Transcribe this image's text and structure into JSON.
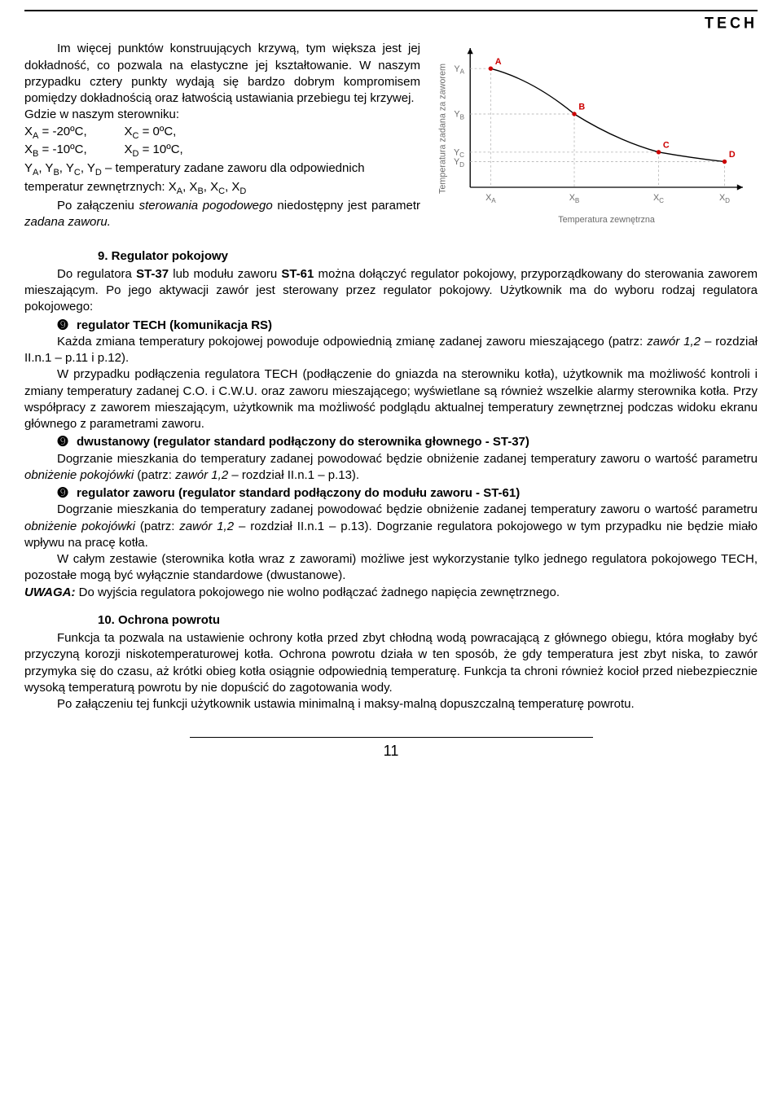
{
  "header": {
    "logo": "TECH"
  },
  "intro": {
    "p1": "Im więcej punktów konstruujących krzywą, tym większa jest jej dokładność, co pozwala na elastyczne jej kształtowanie. W naszym przypadku cztery punkty wydają się bardzo dobrym kompromisem pomiędzy dokładnością oraz łatwością ustawiania przebiegu tej krzywej.",
    "p2": "Gdzie w naszym sterowniku:",
    "vars_l1_a": "X",
    "vars_l1_a_sub": "A",
    "vars_l1_a_val": " = -20ºC,",
    "vars_l1_b": "X",
    "vars_l1_b_sub": "C",
    "vars_l1_b_val": " = 0ºC,",
    "vars_l2_a": "X",
    "vars_l2_a_sub": "B",
    "vars_l2_a_val": " = -10ºC,",
    "vars_l2_b": "X",
    "vars_l2_b_sub": "D",
    "vars_l2_b_val": " = 10ºC,",
    "vars_l3_pre": "Y",
    "vars_l3": ", Y",
    "vars_l3_subs": [
      "A",
      "B",
      "C",
      "D"
    ],
    "vars_l3_post": " – temperatury zadane zaworu dla odpowiednich temperatur zewnętrznych: X",
    "vars_l4_subs": [
      "A",
      "B",
      "C",
      "D"
    ],
    "p3_a": "Po załączeniu ",
    "p3_b": "sterowania pogodowego",
    "p3_c": " niedostępny jest parametr ",
    "p3_d": "zadana zaworu."
  },
  "chart": {
    "type": "line",
    "y_label": "Temperatura zadana za zaworem",
    "x_label": "Temperatura zewnętrzna",
    "y_ticks": [
      "Y",
      "Y",
      "Y",
      "Y"
    ],
    "y_tick_subs": [
      "A",
      "B",
      "C",
      "D"
    ],
    "x_ticks": [
      "X",
      "X",
      "X",
      "X"
    ],
    "x_tick_subs": [
      "A",
      "B",
      "C",
      "D"
    ],
    "point_labels": [
      "A",
      "B",
      "C",
      "D"
    ],
    "points_x": [
      76,
      190,
      305,
      395
    ],
    "points_y": [
      38,
      100,
      152,
      165
    ],
    "axis_color": "#000000",
    "grid_color": "#bdbdbd",
    "line_color": "#000000",
    "point_color": "#cc0000",
    "label_color": "#cc0000",
    "tick_color": "#6a6a6a",
    "label_fontsize": 12,
    "tick_fontsize": 12,
    "axis_label_fontsize": 12,
    "background_color": "#ffffff",
    "marker_radius": 3,
    "line_width": 1.5
  },
  "sec9": {
    "title": "9. Regulator pokojowy",
    "p1_a": "Do regulatora ",
    "p1_b": "ST-37",
    "p1_c": " lub modułu zaworu ",
    "p1_d": "ST-61",
    "p1_e": " można dołączyć regulator pokojowy, przyporządkowany do sterowania zaworem mieszającym. Po jego aktywacji zawór jest sterowany przez regulator pokojowy. Użytkownik ma do wyboru rodzaj regulatora pokojowego:",
    "b1": "regulator TECH (komunikacja RS)",
    "p2_a": "Każda zmiana temperatury pokojowej powoduje odpowiednią zmianę zadanej zaworu mieszającego (patrz: ",
    "p2_b": "zawór 1,2",
    "p2_c": " – rozdział II.n.1 – p.11 i p.12).",
    "p3": "W przypadku podłączenia regulatora TECH (podłączenie do gniazda na sterowniku kotła), użytkownik ma możliwość kontroli i zmiany temperatury zadanej C.O. i C.W.U. oraz zaworu mieszającego; wyświetlane są również wszelkie alarmy sterownika kotła. Przy współpracy z zaworem mieszającym, użytkownik ma możliwość podglądu aktualnej temperatury zewnętrznej podczas widoku ekranu głównego z parametrami zaworu.",
    "b2": "dwustanowy (regulator standard podłączony do sterownika głownego - ST-37)",
    "p4_a": "Dogrzanie mieszkania do temperatury zadanej powodować będzie obniżenie zadanej temperatury zaworu o wartość parametru ",
    "p4_b": "obniżenie pokojówki",
    "p4_c": " (patrz: ",
    "p4_d": "zawór 1,2",
    "p4_e": " – rozdział II.n.1 – p.13).",
    "b3": "regulator zaworu (regulator standard podłączony do  modułu  zaworu - ST-61)",
    "p5_a": "Dogrzanie mieszkania do temperatury zadanej powodować będzie obniżenie zadanej temperatury zaworu o wartość parametru ",
    "p5_b": "obniżenie pokojówki",
    "p5_c": " (patrz: ",
    "p5_d": "zawór 1,2",
    "p5_e": " – rozdział II.n.1 – p.13). Dogrzanie regulatora pokojowego w tym przypadku nie będzie miało wpływu na pracę kotła.",
    "p6": "W całym zestawie (sterownika kotła wraz z zaworami) możliwe jest wykorzystanie tylko jednego regulatora pokojowego TECH, pozostałe mogą być wyłącznie standardowe (dwustanowe).",
    "p7_a": "UWAGA:",
    "p7_b": " Do wyjścia regulatora pokojowego nie wolno podłączać  żadnego napięcia zewnętrznego."
  },
  "sec10": {
    "title": "10. Ochrona powrotu",
    "p1": "Funkcja ta pozwala na ustawienie ochrony kotła przed zbyt chłodną wodą powracającą z głównego obiegu, która mogłaby być przyczyną korozji niskotemperaturowej kotła. Ochrona powrotu działa w ten sposób, że gdy temperatura jest zbyt niska, to zawór przymyka się do czasu, aż krótki obieg kotła osiągnie odpowiednią temperaturę. Funkcja ta chroni również kocioł przed niebezpiecznie wysoką temperaturą powrotu by nie dopuścić do zagotowania wody.",
    "p2": "Po załączeniu tej funkcji użytkownik ustawia minimalną i maksy-malną dopuszczalną temperaturę powrotu."
  },
  "page_number": "11"
}
